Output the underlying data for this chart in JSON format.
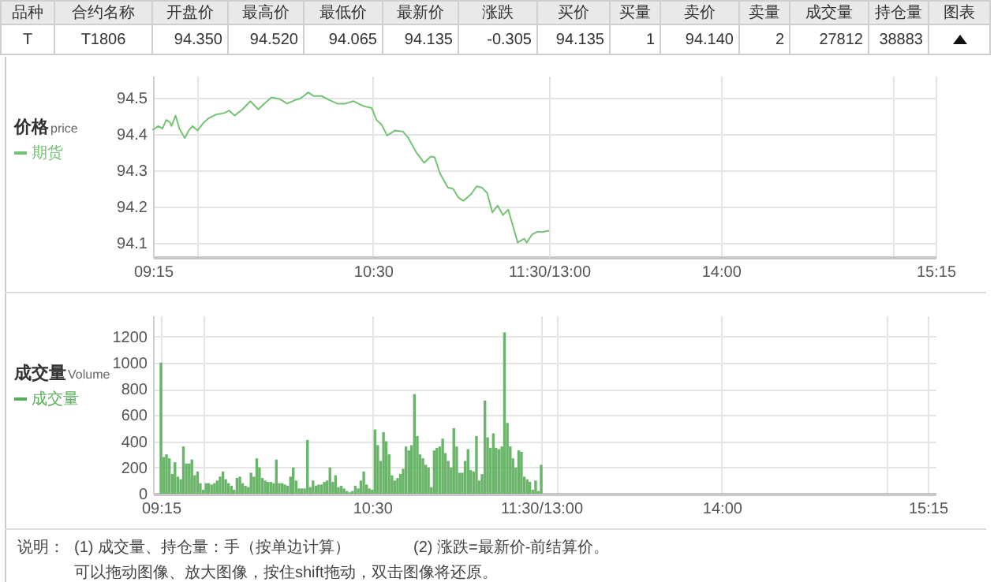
{
  "chart_data": [
    {
      "type": "other",
      "categories": [
        "品种",
        "合约名称",
        "开盘价",
        "最高价",
        "最低价",
        "最新价",
        "涨跌",
        "买价",
        "买量",
        "卖价",
        "卖量",
        "成交量",
        "持仓量",
        "图表"
      ],
      "value_labels": [
        "T",
        "T1806",
        "94.350",
        "94.520",
        "94.065",
        "94.135",
        "-0.305",
        "94.135",
        "1",
        "94.140",
        "2",
        "27812",
        "38883",
        null
      ]
    },
    {
      "type": "line",
      "title": "价格",
      "subtitle": "price",
      "legend": "left",
      "grid": true,
      "x": [
        9.25,
        9.28,
        9.303,
        9.325,
        9.345,
        9.355,
        9.378,
        9.4,
        9.43,
        9.453,
        9.475,
        9.503,
        9.533,
        9.563,
        9.608,
        9.653,
        9.683,
        9.713,
        9.758,
        9.803,
        9.848,
        9.878,
        9.923,
        9.968,
        10.012,
        10.057,
        10.087,
        10.132,
        10.162,
        10.207,
        10.252,
        10.297,
        10.342,
        10.387,
        10.447,
        10.492,
        10.52,
        10.55,
        10.58,
        10.625,
        10.67,
        10.7,
        10.745,
        10.79,
        10.828,
        10.85,
        10.88,
        10.925,
        10.955,
        10.985,
        11.013,
        11.058,
        11.088,
        11.118,
        11.148,
        11.178,
        11.208,
        11.238,
        11.268,
        11.298,
        11.322,
        11.358,
        11.373,
        11.403,
        11.433,
        11.463,
        11.498
      ],
      "series": [
        {
          "name": "期货",
          "color": "#74c374",
          "values": [
            94.411,
            94.421,
            94.414,
            94.438,
            94.432,
            94.421,
            94.45,
            94.414,
            94.388,
            94.409,
            94.421,
            94.409,
            94.428,
            94.442,
            94.453,
            94.457,
            94.464,
            94.45,
            94.467,
            94.49,
            94.467,
            94.481,
            94.5,
            94.496,
            94.483,
            94.493,
            94.497,
            94.514,
            94.504,
            94.504,
            94.493,
            94.483,
            94.483,
            94.49,
            94.476,
            94.471,
            94.438,
            94.424,
            94.395,
            94.409,
            94.406,
            94.389,
            94.349,
            94.32,
            94.337,
            94.335,
            94.291,
            94.252,
            94.248,
            94.224,
            94.215,
            94.234,
            94.255,
            94.252,
            94.237,
            94.183,
            94.202,
            94.176,
            94.191,
            94.14,
            94.1,
            94.111,
            94.1,
            94.122,
            94.13,
            94.129,
            94.133
          ]
        }
      ],
      "xlim": [
        9.25,
        11.5
      ],
      "xticks": [
        {
          "value": 9.25,
          "label": "09:15"
        },
        {
          "value": 9.5,
          "label": null
        },
        {
          "value": 10.5,
          "label": "10:30"
        },
        {
          "value": 11.5,
          "label": "11:30/13:00"
        }
      ],
      "ylim": [
        94.06,
        94.56
      ],
      "yticks": [
        94.1,
        94.2,
        94.3,
        94.4,
        94.5
      ]
    },
    {
      "type": "line",
      "grid": true,
      "tick_labels": "x",
      "xlim": [
        13,
        15.25
      ],
      "xticks": [
        {
          "value": 13,
          "label": null
        },
        {
          "value": 14,
          "label": "14:00"
        },
        {
          "value": 15,
          "label": null
        },
        {
          "value": 15.25,
          "label": "15:15"
        }
      ],
      "ylim": [
        94.06,
        94.56
      ],
      "yticks": [
        94.1,
        94.2,
        94.3,
        94.4,
        94.5
      ]
    },
    {
      "type": "bar",
      "title": "成交量",
      "subtitle": "Volume",
      "legend": "left",
      "grid": true,
      "x": [
        9.25,
        9.267,
        9.283,
        9.3,
        9.317,
        9.333,
        9.35,
        9.367,
        9.383,
        9.4,
        9.417,
        9.433,
        9.45,
        9.467,
        9.483,
        9.5,
        9.517,
        9.533,
        9.55,
        9.567,
        9.583,
        9.6,
        9.617,
        9.633,
        9.65,
        9.667,
        9.683,
        9.7,
        9.717,
        9.733,
        9.75,
        9.767,
        9.783,
        9.8,
        9.817,
        9.833,
        9.85,
        9.867,
        9.883,
        9.9,
        9.917,
        9.933,
        9.95,
        9.967,
        9.983,
        10,
        10.017,
        10.033,
        10.05,
        10.067,
        10.083,
        10.1,
        10.117,
        10.133,
        10.15,
        10.167,
        10.183,
        10.2,
        10.217,
        10.233,
        10.25,
        10.267,
        10.283,
        10.3,
        10.317,
        10.333,
        10.35,
        10.367,
        10.383,
        10.4,
        10.417,
        10.433,
        10.45,
        10.467,
        10.483,
        10.5,
        10.517,
        10.533,
        10.55,
        10.567,
        10.583,
        10.6,
        10.617,
        10.633,
        10.65,
        10.667,
        10.683,
        10.7,
        10.717,
        10.733,
        10.75,
        10.767,
        10.783,
        10.8,
        10.817,
        10.833,
        10.85,
        10.867,
        10.883,
        10.9,
        10.917,
        10.933,
        10.95,
        10.967,
        10.983,
        11,
        11.017,
        11.033,
        11.05,
        11.067,
        11.083,
        11.1,
        11.117,
        11.133,
        11.15,
        11.167,
        11.183,
        11.2,
        11.217,
        11.233,
        11.25,
        11.267,
        11.283,
        11.3,
        11.317,
        11.333,
        11.35,
        11.367,
        11.383,
        11.4,
        11.417,
        11.433,
        11.45,
        11.467,
        11.483,
        11.5
      ],
      "series": [
        {
          "name": "成交量",
          "color": "#5aad5a",
          "values": [
            1000,
            280,
            300,
            270,
            150,
            240,
            130,
            110,
            360,
            230,
            230,
            260,
            140,
            170,
            80,
            30,
            80,
            80,
            70,
            80,
            100,
            130,
            170,
            110,
            80,
            60,
            30,
            120,
            130,
            80,
            60,
            50,
            160,
            130,
            270,
            200,
            120,
            100,
            90,
            90,
            80,
            260,
            80,
            80,
            70,
            60,
            130,
            200,
            100,
            40,
            40,
            40,
            410,
            50,
            100,
            60,
            70,
            70,
            90,
            100,
            200,
            90,
            140,
            50,
            60,
            40,
            20,
            10,
            20,
            60,
            40,
            100,
            170,
            70,
            40,
            30,
            490,
            370,
            250,
            470,
            400,
            300,
            140,
            100,
            120,
            150,
            190,
            360,
            330,
            370,
            760,
            440,
            300,
            270,
            220,
            200,
            50,
            330,
            350,
            360,
            420,
            310,
            250,
            200,
            500,
            360,
            160,
            160,
            250,
            340,
            180,
            170,
            440,
            100,
            150,
            710,
            430,
            350,
            460,
            350,
            340,
            360,
            1230,
            540,
            360,
            270,
            200,
            330,
            320,
            130,
            110,
            90,
            30,
            100,
            20,
            220
          ]
        }
      ],
      "xlim": [
        9.25,
        11.5
      ],
      "xticks": [
        {
          "value": 9.25,
          "label": "09:15"
        },
        {
          "value": 9.5,
          "label": null
        },
        {
          "value": 10.5,
          "label": "10:30"
        },
        {
          "value": 11.5,
          "label": "11:30/13:00"
        }
      ],
      "ylim": [
        0,
        1360
      ],
      "yticks": [
        0,
        200,
        400,
        600,
        800,
        1000,
        1200
      ],
      "annotations": [
        "说明：",
        "(1) 成交量、持仓量：手（按单边计算）",
        "(2) 涨跌=最新价-前结算价。",
        "可以拖动图像、放大图像，按住shift拖动，双击图像将还原。"
      ]
    },
    {
      "type": "bar",
      "grid": true,
      "tick_labels": "x",
      "xlim": [
        13,
        15.25
      ],
      "xticks": [
        {
          "value": 13,
          "label": null
        },
        {
          "value": 14,
          "label": "14:00"
        },
        {
          "value": 15,
          "label": null
        },
        {
          "value": 15.25,
          "label": "15:15"
        }
      ],
      "ylim": [
        0,
        1360
      ],
      "yticks": [
        0,
        200,
        400,
        600,
        800,
        1000,
        1200
      ]
    }
  ]
}
